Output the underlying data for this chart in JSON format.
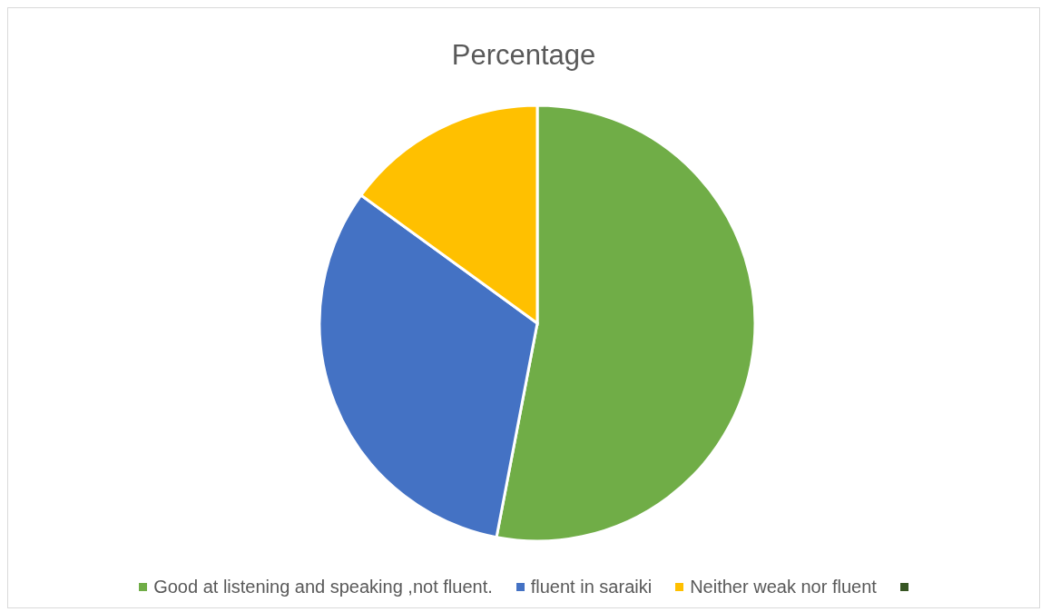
{
  "chart_data": {
    "type": "pie",
    "title": "Percentage",
    "categories": [
      "Good at listening and speaking ,not fluent.",
      "fluent in saraiki",
      "Neither weak nor fluent",
      null
    ],
    "values": [
      53,
      32,
      15,
      0
    ],
    "colors": [
      "#70ad47",
      "#4472c4",
      "#ffc000",
      "#375623"
    ],
    "legend": "bottom"
  }
}
